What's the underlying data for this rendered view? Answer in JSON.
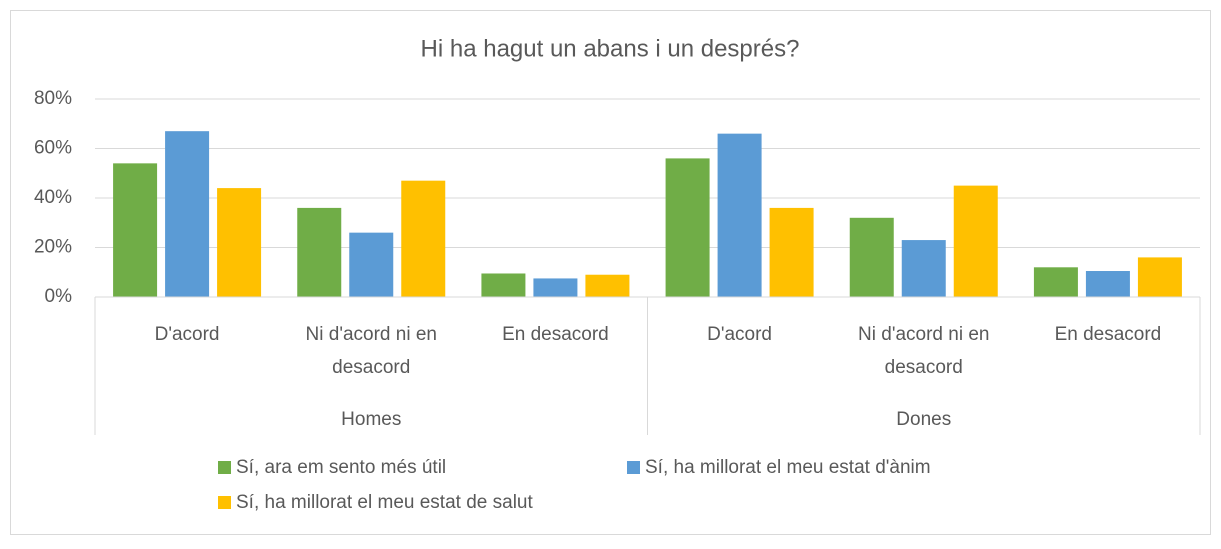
{
  "chart_data": {
    "type": "bar",
    "title": "Hi ha hagut un abans i un després?",
    "categories": [
      "D'acord",
      "Ni d'acord ni en desacord",
      "En desacord",
      "D'acord",
      "Ni d'acord ni en desacord",
      "En desacord"
    ],
    "groups": [
      "Homes",
      "Dones"
    ],
    "series": [
      {
        "name": "Sí, ara em sento més útil",
        "color": "#70ad47",
        "values": [
          54,
          36,
          9.5,
          56,
          32,
          12
        ]
      },
      {
        "name": "Sí, ha millorat el meu estat d'ànim",
        "color": "#5b9bd5",
        "values": [
          67,
          26,
          7.5,
          66,
          23,
          10.5
        ]
      },
      {
        "name": "Sí, ha millorat el meu estat de salut",
        "color": "#ffc000",
        "values": [
          44,
          47,
          9,
          36,
          45,
          16
        ]
      }
    ],
    "ylim": [
      0,
      80
    ],
    "yticks": [
      {
        "value": 0,
        "label": "0%"
      },
      {
        "value": 20,
        "label": "20%"
      },
      {
        "value": 40,
        "label": "40%"
      },
      {
        "value": 60,
        "label": "60%"
      },
      {
        "value": 80,
        "label": "80%"
      }
    ],
    "grid": true,
    "legend": "bottom"
  }
}
